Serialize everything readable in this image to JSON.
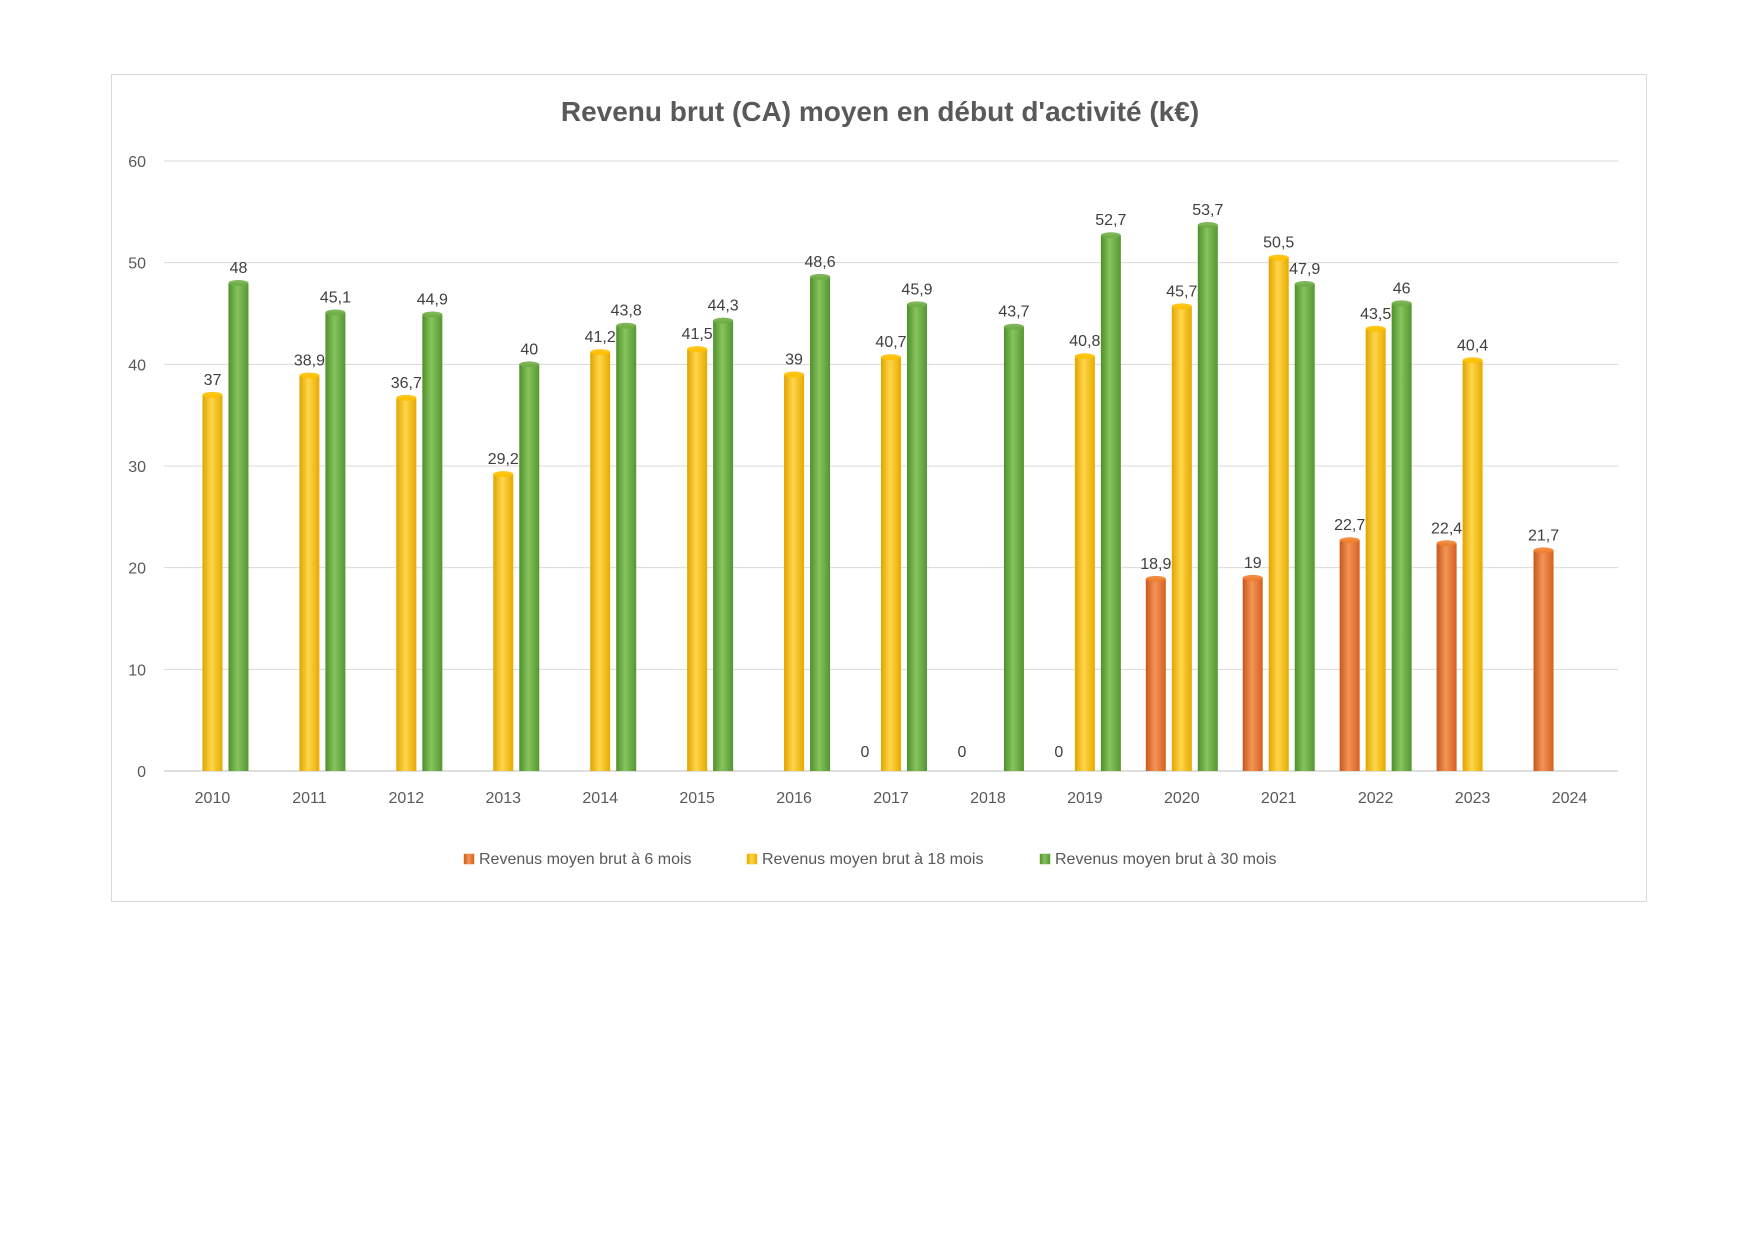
{
  "chart_data": {
    "type": "bar",
    "title": "Revenu brut (CA) moyen en début d'activité (k€)",
    "xlabel": "",
    "ylabel": "",
    "ylim": [
      0,
      60
    ],
    "yticks": [
      0,
      10,
      20,
      30,
      40,
      50,
      60
    ],
    "grid": true,
    "legend_position": "bottom",
    "categories": [
      "2010",
      "2011",
      "2012",
      "2013",
      "2014",
      "2015",
      "2016",
      "2017",
      "2018",
      "2019",
      "2020",
      "2021",
      "2022",
      "2023",
      "2024"
    ],
    "series": [
      {
        "name": "Revenus moyen brut à 6 mois",
        "color": "#f07f2e",
        "values": [
          null,
          null,
          null,
          null,
          null,
          null,
          null,
          0,
          0,
          0,
          18.9,
          19,
          22.7,
          22.4,
          21.7
        ],
        "labels": [
          "",
          "",
          "",
          "",
          "",
          "",
          "",
          "0",
          "0",
          "0",
          "18,9",
          "19",
          "22,7",
          "22,4",
          "21,7"
        ]
      },
      {
        "name": "Revenus moyen brut à 18 mois",
        "color": "#ffc000",
        "values": [
          37,
          38.9,
          36.7,
          29.2,
          41.2,
          41.5,
          39,
          40.7,
          null,
          40.8,
          45.7,
          50.5,
          43.5,
          40.4,
          null
        ],
        "labels": [
          "37",
          "38,9",
          "36,7",
          "29,2",
          "41,2",
          "41,5",
          "39",
          "40,7",
          "",
          "40,8",
          "45,7",
          "50,5",
          "43,5",
          "40,4",
          ""
        ]
      },
      {
        "name": "Revenus moyen brut à 30 mois",
        "color": "#70ad47",
        "values": [
          48,
          45.1,
          44.9,
          40,
          43.8,
          44.3,
          48.6,
          45.9,
          43.7,
          52.7,
          53.7,
          47.9,
          46,
          null,
          null
        ],
        "labels": [
          "48",
          "45,1",
          "44,9",
          "40",
          "43,8",
          "44,3",
          "48,6",
          "45,9",
          "43,7",
          "52,7",
          "53,7",
          "47,9",
          "46",
          "",
          ""
        ]
      }
    ]
  }
}
